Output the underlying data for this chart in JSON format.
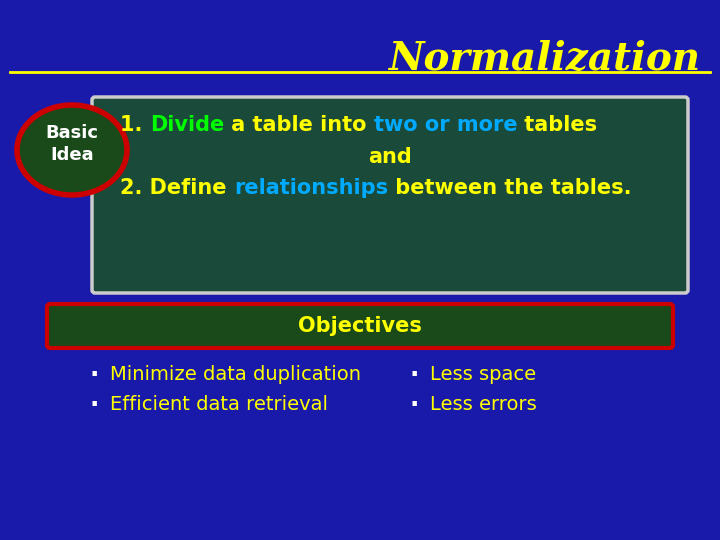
{
  "bg_color": "#1a1aaa",
  "title": "Normalization",
  "title_color": "#ffff00",
  "title_underline_color": "#ffff00",
  "basic_idea_label": "Basic\nIdea",
  "basic_idea_text_color": "#ffffff",
  "basic_idea_ellipse_bg": "#1a4a1a",
  "basic_idea_ellipse_border": "#cc0000",
  "main_box_bg": "#1a4a3a",
  "main_box_border": "#cccccc",
  "line1_parts": [
    {
      "text": "1. ",
      "color": "#ffff00"
    },
    {
      "text": "Divide",
      "color": "#00ff00"
    },
    {
      "text": " a table into ",
      "color": "#ffff00"
    },
    {
      "text": "two or more",
      "color": "#00aaff"
    },
    {
      "text": " tables",
      "color": "#ffff00"
    }
  ],
  "line2": "and",
  "line2_color": "#ffff00",
  "line3_parts": [
    {
      "text": "2. Define ",
      "color": "#ffff00"
    },
    {
      "text": "relationships",
      "color": "#00aaff"
    },
    {
      "text": " between the tables.",
      "color": "#ffff00"
    }
  ],
  "obj_box_bg": "#1a4a1a",
  "obj_box_border": "#cc0000",
  "obj_label": "Objectives",
  "obj_label_color": "#ffff00",
  "bullet_color": "#ffffff",
  "bullets_left": [
    "Minimize data duplication",
    "Efficient data retrieval"
  ],
  "bullets_right": [
    "Less space",
    "Less errors"
  ],
  "bullet_text_color": "#ffff00"
}
